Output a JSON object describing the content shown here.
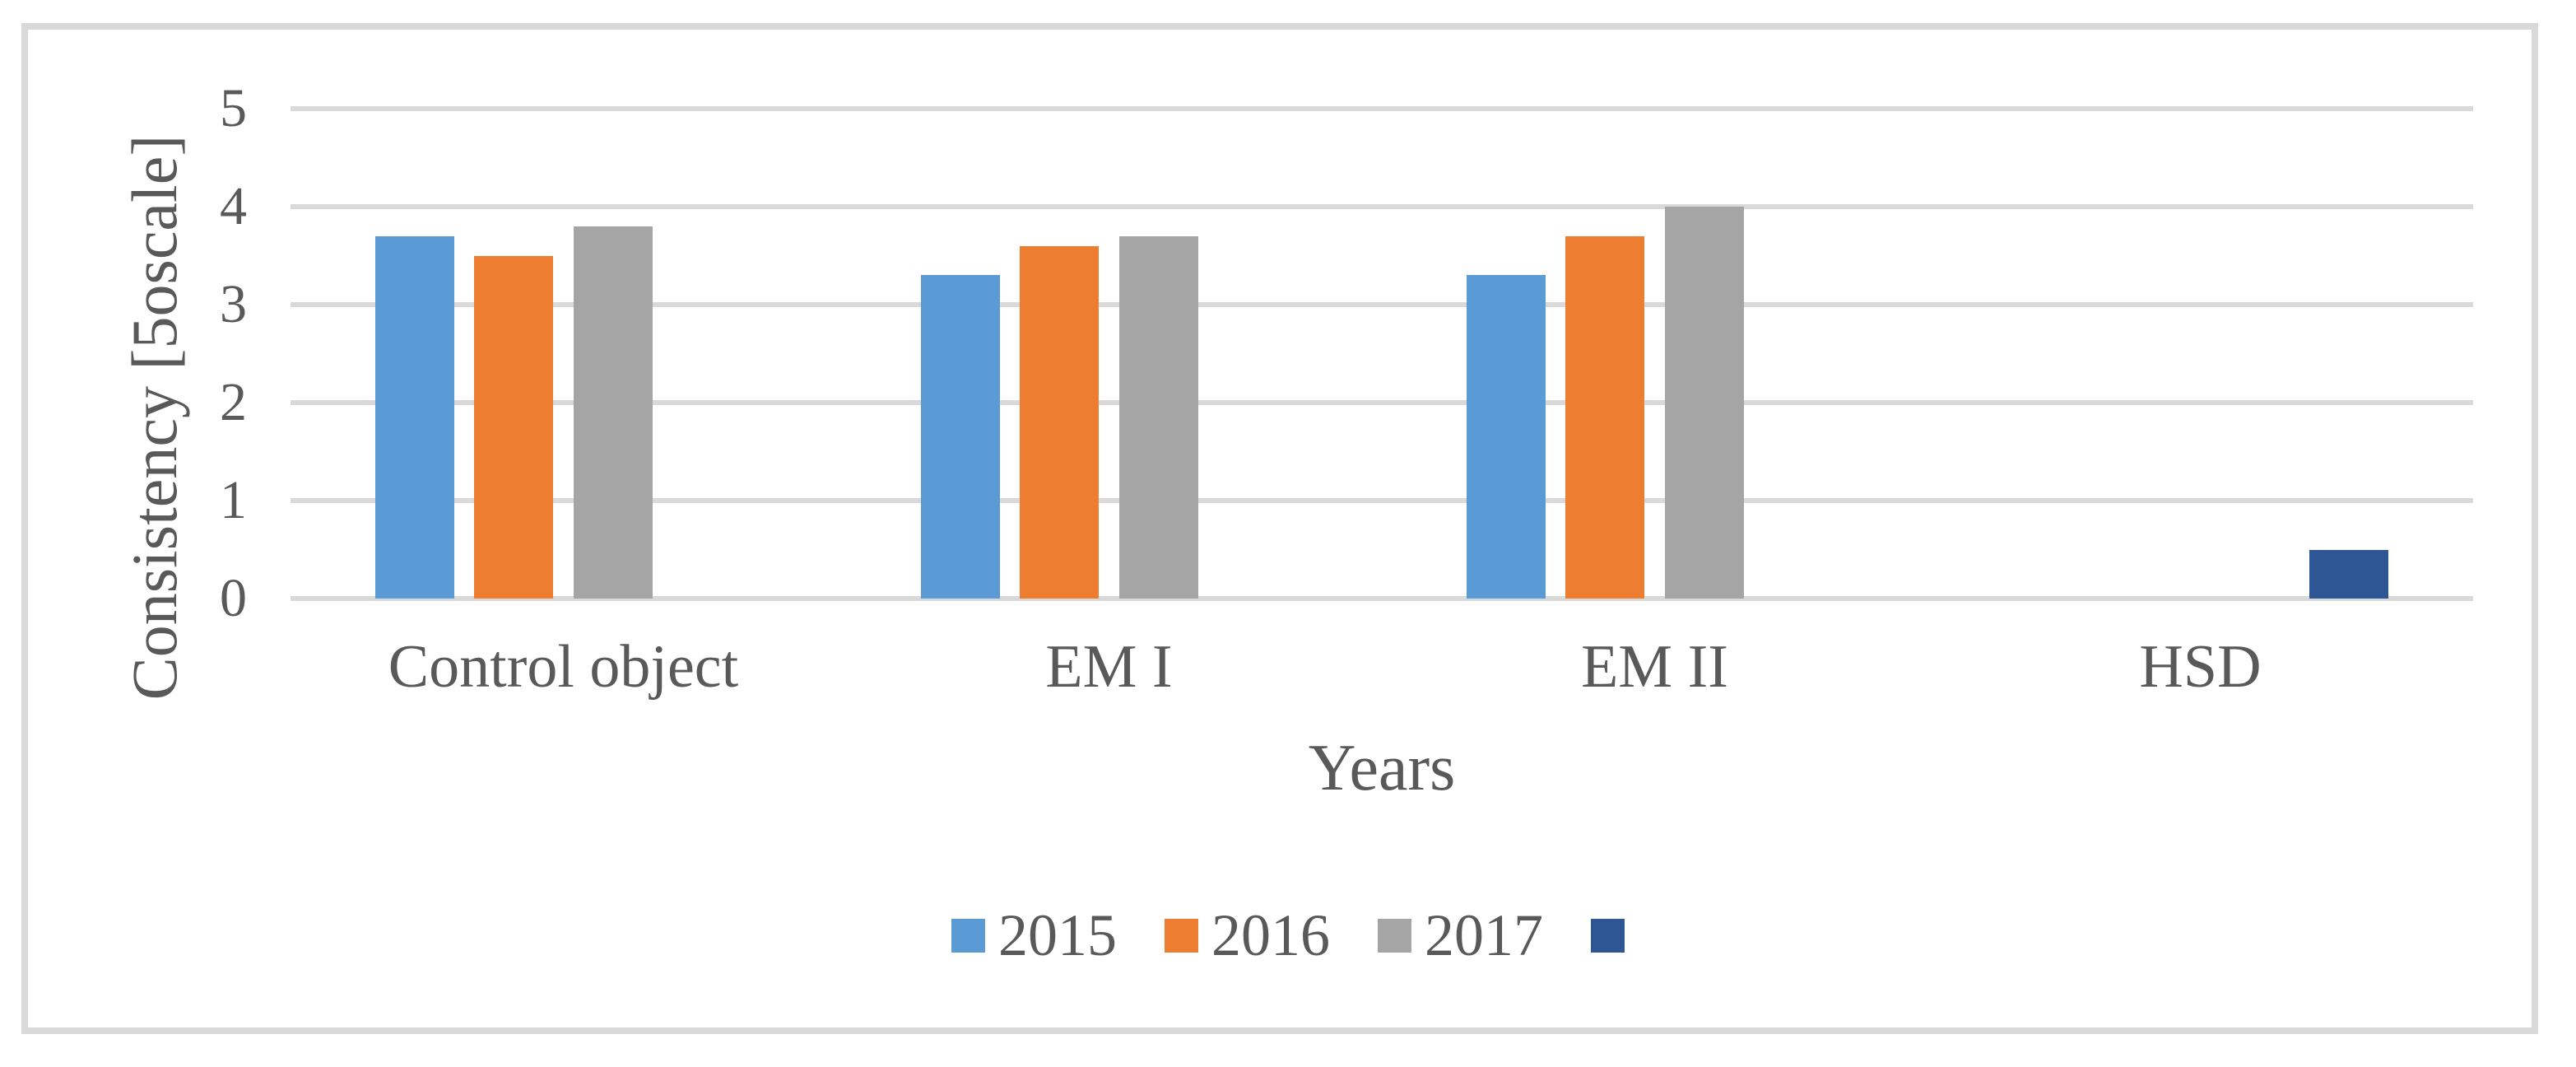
{
  "figure": {
    "border_color": "#D9D9D9",
    "background_color": "#FFFFFF",
    "text_color": "#595959"
  },
  "chart_data": {
    "type": "bar",
    "title": "",
    "categories": [
      "Control object",
      "EM I",
      "EM II",
      "HSD"
    ],
    "series": [
      {
        "name": "2015",
        "color": "#5B9BD5",
        "values": [
          3.7,
          3.3,
          3.3,
          null
        ]
      },
      {
        "name": "2016",
        "color": "#ED7D31",
        "values": [
          3.5,
          3.6,
          3.7,
          null
        ]
      },
      {
        "name": "2017",
        "color": "#A5A5A5",
        "values": [
          3.8,
          3.7,
          4.0,
          null
        ]
      },
      {
        "name": "",
        "color": "#2E5594",
        "values": [
          null,
          null,
          null,
          0.5
        ]
      }
    ],
    "xlabel": "Years",
    "ylabel": "Consistency [5oscale]",
    "ylim": [
      0,
      5
    ],
    "yticks": [
      0,
      1,
      2,
      3,
      4,
      5
    ],
    "grid": "horizontal",
    "gridline_color": "#D9D9D9",
    "legend_position": "bottom-center"
  }
}
